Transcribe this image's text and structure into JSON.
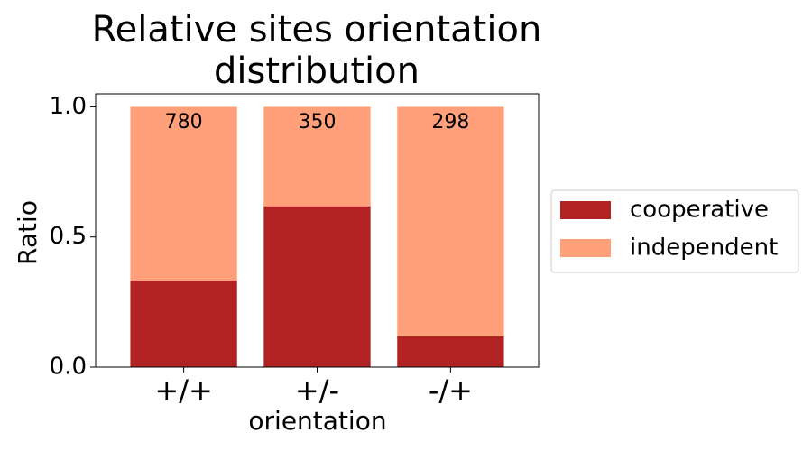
{
  "chart_data": {
    "type": "stacked_bar",
    "title": "Relative sites orientation distribution",
    "x_label": "orientation",
    "y_label": "Ratio",
    "categories": [
      "+/+",
      "+/-",
      "-/+"
    ],
    "series": [
      {
        "name": "cooperative",
        "color": "#b22222",
        "values": [
          0.333,
          0.618,
          0.118
        ]
      },
      {
        "name": "independent",
        "color": "#ffa07a",
        "values": [
          0.667,
          0.382,
          0.882
        ]
      }
    ],
    "annotations": [
      780,
      350,
      298
    ],
    "ylim": [
      0,
      1.05
    ],
    "yticks": [
      {
        "value": 0,
        "label": "0.0"
      },
      0.5,
      {
        "value": 1,
        "label": "1.0"
      }
    ],
    "legend": "outside-right"
  }
}
